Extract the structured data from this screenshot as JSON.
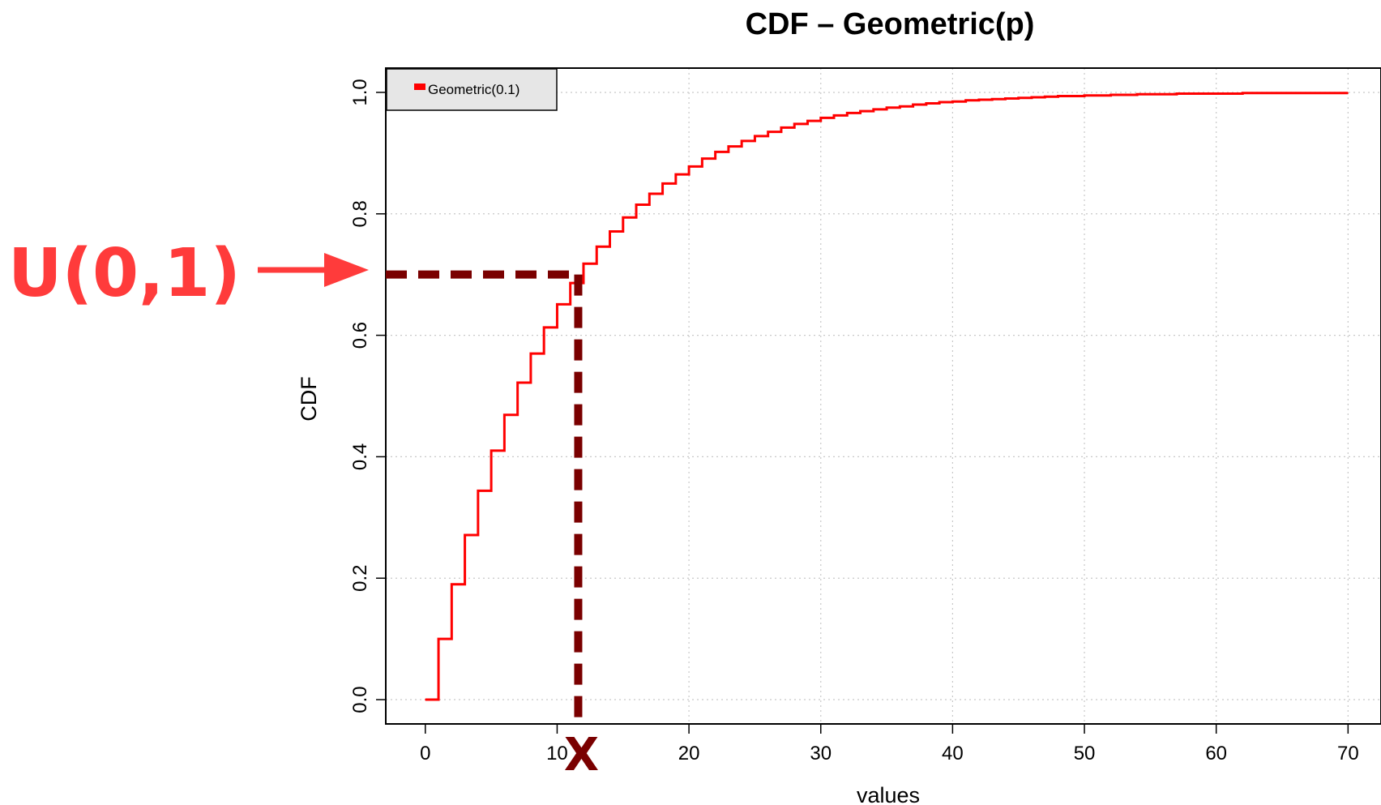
{
  "chart_data": {
    "type": "line",
    "step": true,
    "title": "CDF – Geometric(p)",
    "xlabel": "values",
    "ylabel": "CDF",
    "xlim": [
      -3,
      72.5
    ],
    "ylim": [
      -0.04,
      1.04
    ],
    "xticks": [
      0,
      10,
      20,
      30,
      40,
      50,
      60,
      70
    ],
    "yticks": [
      0.0,
      0.2,
      0.4,
      0.6,
      0.8,
      1.0
    ],
    "xtick_labels": [
      "0",
      "10",
      "20",
      "30",
      "40",
      "50",
      "60",
      "70"
    ],
    "ytick_labels": [
      "0.0",
      "0.2",
      "0.4",
      "0.6",
      "0.8",
      "1.0"
    ],
    "grid": true,
    "legend": {
      "position": "top-left"
    },
    "series": [
      {
        "name": "Geometric(0.1)",
        "color": "#ff0000",
        "p": 0.1,
        "x": [
          0,
          1,
          2,
          3,
          4,
          5,
          6,
          7,
          8,
          9,
          10,
          11,
          12,
          13,
          14,
          15,
          16,
          17,
          18,
          19,
          20,
          21,
          22,
          23,
          24,
          25,
          26,
          27,
          28,
          29,
          30,
          31,
          32,
          33,
          34,
          35,
          36,
          37,
          38,
          39,
          40,
          41,
          42,
          43,
          44,
          45,
          46,
          47,
          48,
          49,
          50,
          51,
          52,
          53,
          54,
          55,
          56,
          57,
          58,
          59,
          60,
          61,
          62,
          63,
          64,
          65,
          66,
          67,
          68,
          69,
          70
        ],
        "y": [
          0,
          0.1,
          0.19,
          0.271,
          0.344,
          0.41,
          0.469,
          0.522,
          0.57,
          0.613,
          0.651,
          0.686,
          0.718,
          0.746,
          0.771,
          0.794,
          0.815,
          0.833,
          0.85,
          0.865,
          0.878,
          0.891,
          0.902,
          0.911,
          0.92,
          0.928,
          0.935,
          0.942,
          0.948,
          0.953,
          0.958,
          0.962,
          0.966,
          0.969,
          0.972,
          0.975,
          0.977,
          0.98,
          0.982,
          0.984,
          0.985,
          0.987,
          0.988,
          0.989,
          0.99,
          0.991,
          0.992,
          0.993,
          0.994,
          0.994,
          0.995,
          0.995,
          0.996,
          0.996,
          0.997,
          0.997,
          0.997,
          0.998,
          0.998,
          0.998,
          0.998,
          0.998,
          0.999,
          0.999,
          0.999,
          0.999,
          0.999,
          0.999,
          0.999,
          0.999,
          0.999
        ]
      }
    ],
    "annotations": {
      "u_label": "U(0,1)",
      "x_label": "X",
      "u_value": 0.7,
      "x_value": 11.6,
      "arrow_color": "#ff3b3b",
      "dash_color": "#7a0000"
    }
  }
}
